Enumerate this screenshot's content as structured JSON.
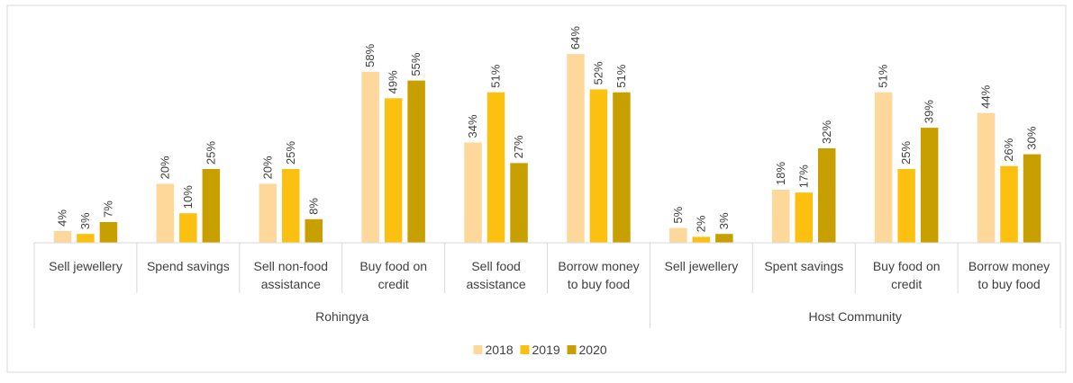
{
  "chart_data": {
    "type": "bar",
    "title": "",
    "xlabel": "",
    "ylabel": "",
    "ylim": [
      0,
      70
    ],
    "grid": false,
    "legend_position": "bottom",
    "colors": {
      "2018": "#fdd89a",
      "2019": "#fcc010",
      "2020": "#c7a000"
    },
    "series_names": [
      "2018",
      "2019",
      "2020"
    ],
    "groups": [
      {
        "name": "Rohingya",
        "categories": [
          {
            "lines": [
              "Sell jewellery"
            ],
            "values": [
              4,
              3,
              7
            ],
            "labels": [
              "4%",
              "3%",
              "7%"
            ]
          },
          {
            "lines": [
              "Spend savings"
            ],
            "values": [
              20,
              10,
              25
            ],
            "labels": [
              "20%",
              "10%",
              "25%"
            ]
          },
          {
            "lines": [
              "Sell non-food",
              "assistance"
            ],
            "values": [
              20,
              25,
              8
            ],
            "labels": [
              "20%",
              "25%",
              "8%"
            ]
          },
          {
            "lines": [
              "Buy food on",
              "credit"
            ],
            "values": [
              58,
              49,
              55
            ],
            "labels": [
              "58%",
              "49%",
              "55%"
            ]
          },
          {
            "lines": [
              "Sell food",
              "assistance"
            ],
            "values": [
              34,
              51,
              27
            ],
            "labels": [
              "34%",
              "51%",
              "27%"
            ]
          },
          {
            "lines": [
              "Borrow money",
              "to buy food"
            ],
            "values": [
              64,
              52,
              51
            ],
            "labels": [
              "64%",
              "52%",
              "51%"
            ]
          }
        ]
      },
      {
        "name": "Host Community",
        "categories": [
          {
            "lines": [
              "Sell jewellery"
            ],
            "values": [
              5,
              2,
              3
            ],
            "labels": [
              "5%",
              "2%",
              "3%"
            ]
          },
          {
            "lines": [
              "Spent savings"
            ],
            "values": [
              18,
              17,
              32
            ],
            "labels": [
              "18%",
              "17%",
              "32%"
            ]
          },
          {
            "lines": [
              "Buy food on",
              "credit"
            ],
            "values": [
              51,
              25,
              39
            ],
            "labels": [
              "51%",
              "25%",
              "39%"
            ]
          },
          {
            "lines": [
              "Borrow money",
              "to buy food"
            ],
            "values": [
              44,
              26,
              30
            ],
            "labels": [
              "44%",
              "26%",
              "30%"
            ]
          }
        ]
      }
    ]
  }
}
